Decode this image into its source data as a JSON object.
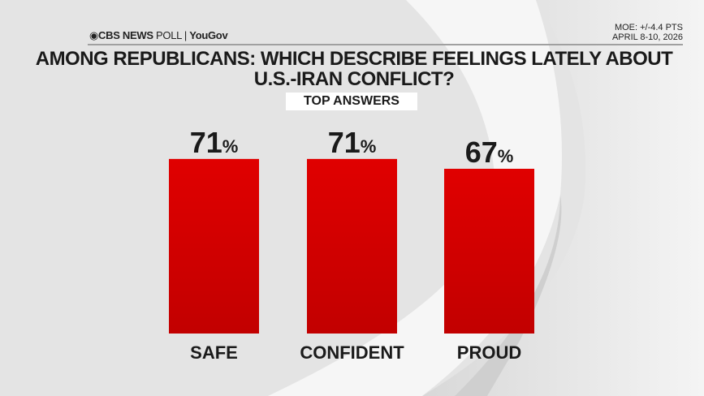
{
  "header": {
    "brand": "CBS NEWS",
    "poll": "POLL",
    "partner": "YouGov",
    "moe": "MOE: +/-4.4 PTS",
    "dates": "APRIL 8-10, 2026"
  },
  "chart_data": {
    "type": "bar",
    "title": "AMONG REPUBLICANS: WHICH DESCRIBE FEELINGS LATELY ABOUT U.S.-IRAN CONFLICT?",
    "subtitle": "TOP ANSWERS",
    "categories": [
      "SAFE",
      "CONFIDENT",
      "PROUD"
    ],
    "values": [
      71,
      71,
      67
    ],
    "value_suffix": "%",
    "ylim": [
      0,
      100
    ],
    "grid": false,
    "bar_color": "#d40000"
  }
}
